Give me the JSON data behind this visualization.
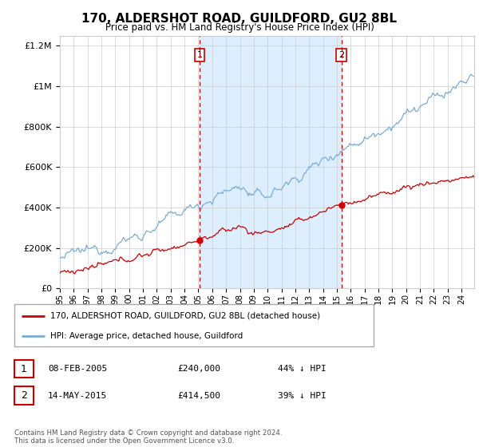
{
  "title": "170, ALDERSHOT ROAD, GUILDFORD, GU2 8BL",
  "subtitle": "Price paid vs. HM Land Registry's House Price Index (HPI)",
  "red_label": "170, ALDERSHOT ROAD, GUILDFORD, GU2 8BL (detached house)",
  "blue_label": "HPI: Average price, detached house, Guildford",
  "transaction1_date": "08-FEB-2005",
  "transaction1_price": "£240,000",
  "transaction1_hpi": "44% ↓ HPI",
  "transaction2_date": "14-MAY-2015",
  "transaction2_price": "£414,500",
  "transaction2_hpi": "39% ↓ HPI",
  "footer": "Contains HM Land Registry data © Crown copyright and database right 2024.\nThis data is licensed under the Open Government Licence v3.0.",
  "ylim_min": 0,
  "ylim_max": 1250000,
  "shading_color": "#ddeeff",
  "grid_color": "#cccccc",
  "red_color": "#cc0000",
  "blue_color": "#7aadd4",
  "box_edge_color": "#cc0000",
  "legend_edge_color": "#aaaaaa"
}
